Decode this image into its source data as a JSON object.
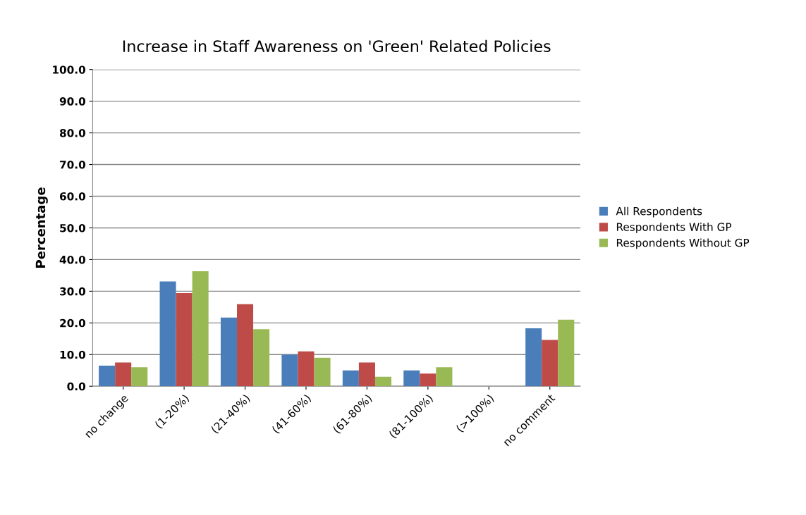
{
  "chart_data": {
    "type": "bar",
    "title": "Increase in Staff Awareness on 'Green' Related Policies",
    "ylabel": "Percentage",
    "categories": [
      "no change",
      "(1-20%)",
      "(21-40%)",
      "(41-60%)",
      "(61-80%)",
      "(81-100%)",
      "(>100%)",
      "no comment"
    ],
    "series": [
      {
        "name": "All Respondents",
        "color": "#4a7ebb",
        "values": [
          6.5,
          33.1,
          21.7,
          10.0,
          5.0,
          5.0,
          0,
          18.3
        ]
      },
      {
        "name": "Respondents With GP",
        "color": "#be4b48",
        "values": [
          7.5,
          29.4,
          25.9,
          11.0,
          7.5,
          4.0,
          0,
          14.6
        ]
      },
      {
        "name": "Respondents Without GP",
        "color": "#98b954",
        "values": [
          6.0,
          36.3,
          18.0,
          9.0,
          3.0,
          6.0,
          0,
          21.0
        ]
      }
    ],
    "ylim": [
      0,
      100
    ],
    "yticks": [
      {
        "value": 0,
        "label": "0.0"
      },
      {
        "value": 10,
        "label": "10.0"
      },
      {
        "value": 20,
        "label": "20.0"
      },
      {
        "value": 30,
        "label": "30.0"
      },
      {
        "value": 40,
        "label": "40.0"
      },
      {
        "value": 50,
        "label": "50.0"
      },
      {
        "value": 60,
        "label": "60.0"
      },
      {
        "value": 70,
        "label": "70.0"
      },
      {
        "value": 80,
        "label": "80.0"
      },
      {
        "value": 90,
        "label": "90.0"
      },
      {
        "value": 100,
        "label": "100.0"
      }
    ],
    "grid": "y",
    "legend": "right"
  }
}
